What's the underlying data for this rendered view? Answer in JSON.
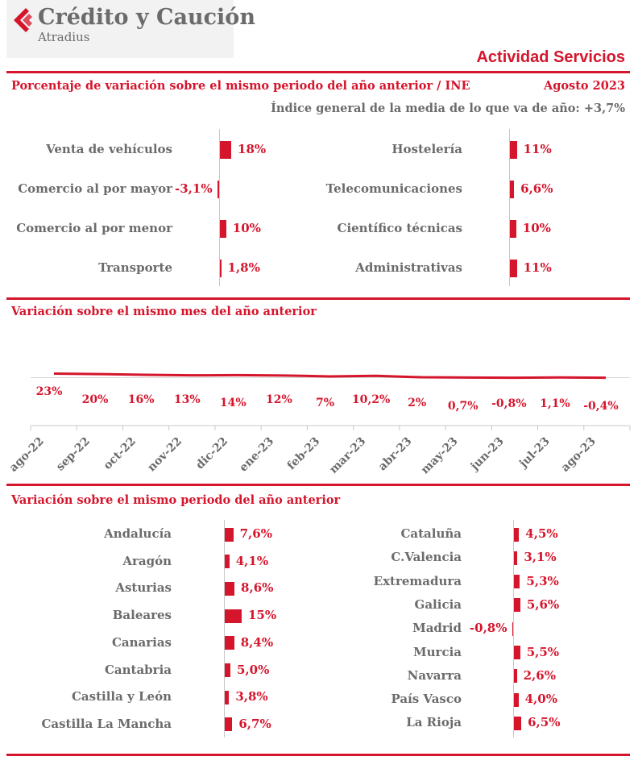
{
  "brand": {
    "name": "Crédito y Caución",
    "sub": "Atradius"
  },
  "header": {
    "title": "Actividad Servicios",
    "subtitle": "Porcentaje de variación sobre el mismo periodo del año anterior / INE",
    "date": "Agosto 2023",
    "index_label": "Índice general de la media de lo que va de año:",
    "index_value": "+3,7%"
  },
  "colors": {
    "accent": "#d5152c",
    "label": "#6b6b6b",
    "axis": "#c8c8c8"
  },
  "sectors": {
    "left": [
      {
        "label": "Venta de vehículos",
        "value": 18,
        "display": "18%"
      },
      {
        "label": "Comercio al por mayor",
        "value": -3.1,
        "display": "-3,1%"
      },
      {
        "label": "Comercio al por menor",
        "value": 10,
        "display": "10%"
      },
      {
        "label": "Transporte",
        "value": 1.8,
        "display": "1,8%"
      }
    ],
    "right": [
      {
        "label": "Hostelería",
        "value": 11,
        "display": "11%"
      },
      {
        "label": "Telecomunicaciones",
        "value": 6.6,
        "display": "6,6%"
      },
      {
        "label": "Científico técnicas",
        "value": 10,
        "display": "10%"
      },
      {
        "label": "Administrativas",
        "value": 11,
        "display": "11%"
      }
    ]
  },
  "monthly": {
    "title": "Variación sobre el mismo mes del año anterior",
    "months": [
      "ago-22",
      "sep-22",
      "oct-22",
      "nov-22",
      "dic-22",
      "ene-23",
      "feb-23",
      "mar-23",
      "abr-23",
      "may-23",
      "jun-23",
      "jul-23",
      "ago-23"
    ],
    "values": [
      23,
      20,
      16,
      13,
      14,
      12,
      7,
      10.2,
      2,
      0.7,
      -0.8,
      1.1,
      -0.4
    ],
    "labels": [
      "23%",
      "20%",
      "16%",
      "13%",
      "14%",
      "12%",
      "7%",
      "10,2%",
      "2%",
      "0,7%",
      "-0,8%",
      "1,1%",
      "-0,4%"
    ]
  },
  "regions": {
    "title": "Variación sobre el mismo periodo del año anterior",
    "left": [
      {
        "label": "Andalucía",
        "value": 7.6,
        "display": "7,6%"
      },
      {
        "label": "Aragón",
        "value": 4.1,
        "display": "4,1%"
      },
      {
        "label": "Asturias",
        "value": 8.6,
        "display": "8,6%"
      },
      {
        "label": "Baleares",
        "value": 15,
        "display": "15%"
      },
      {
        "label": "Canarias",
        "value": 8.4,
        "display": "8,4%"
      },
      {
        "label": "Cantabria",
        "value": 5.0,
        "display": "5,0%"
      },
      {
        "label": "Castilla y León",
        "value": 3.8,
        "display": "3,8%"
      },
      {
        "label": "Castilla La Mancha",
        "value": 6.7,
        "display": "6,7%"
      }
    ],
    "right": [
      {
        "label": "Cataluña",
        "value": 4.5,
        "display": "4,5%"
      },
      {
        "label": "C.Valencia",
        "value": 3.1,
        "display": "3,1%"
      },
      {
        "label": "Extremadura",
        "value": 5.3,
        "display": "5,3%"
      },
      {
        "label": "Galicia",
        "value": 5.6,
        "display": "5,6%"
      },
      {
        "label": "Madrid",
        "value": -0.8,
        "display": "-0,8%"
      },
      {
        "label": "Murcia",
        "value": 5.5,
        "display": "5,5%"
      },
      {
        "label": "Navarra",
        "value": 2.6,
        "display": "2,6%"
      },
      {
        "label": "País Vasco",
        "value": 4.0,
        "display": "4,0%"
      },
      {
        "label": "La Rioja",
        "value": 6.5,
        "display": "6,5%"
      }
    ]
  },
  "chart_data": [
    {
      "type": "bar",
      "title": "Porcentaje de variación sobre el mismo periodo del año anterior / INE",
      "categories": [
        "Venta de vehículos",
        "Comercio al por mayor",
        "Comercio al por menor",
        "Transporte",
        "Hostelería",
        "Telecomunicaciones",
        "Científico técnicas",
        "Administrativas"
      ],
      "values": [
        18,
        -3.1,
        10,
        1.8,
        11,
        6.6,
        10,
        11
      ]
    },
    {
      "type": "line",
      "title": "Variación sobre el mismo mes del año anterior",
      "x": [
        "ago-22",
        "sep-22",
        "oct-22",
        "nov-22",
        "dic-22",
        "ene-23",
        "feb-23",
        "mar-23",
        "abr-23",
        "may-23",
        "jun-23",
        "jul-23",
        "ago-23"
      ],
      "y": [
        23,
        20,
        16,
        13,
        14,
        12,
        7,
        10.2,
        2,
        0.7,
        -0.8,
        1.1,
        -0.4
      ]
    },
    {
      "type": "bar",
      "title": "Variación sobre el mismo periodo del año anterior",
      "categories": [
        "Andalucía",
        "Aragón",
        "Asturias",
        "Baleares",
        "Canarias",
        "Cantabria",
        "Castilla y León",
        "Castilla La Mancha",
        "Cataluña",
        "C.Valencia",
        "Extremadura",
        "Galicia",
        "Madrid",
        "Murcia",
        "Navarra",
        "País Vasco",
        "La Rioja"
      ],
      "values": [
        7.6,
        4.1,
        8.6,
        15,
        8.4,
        5.0,
        3.8,
        6.7,
        4.5,
        3.1,
        5.3,
        5.6,
        -0.8,
        5.5,
        2.6,
        4.0,
        6.5
      ]
    }
  ]
}
